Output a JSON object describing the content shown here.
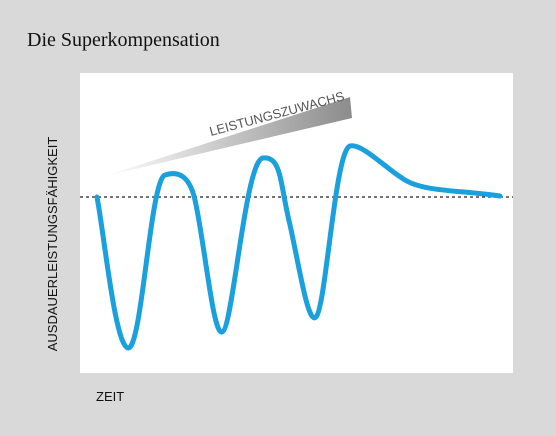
{
  "header": {
    "title": "Die Superkompensation"
  },
  "diagram": {
    "trend_label": "LEISTUNGSZUWACHS",
    "y_axis_label": "AUSDAUERLEISTUNGSFÄHIGKEIT",
    "x_axis_label": "ZEIT"
  }
}
